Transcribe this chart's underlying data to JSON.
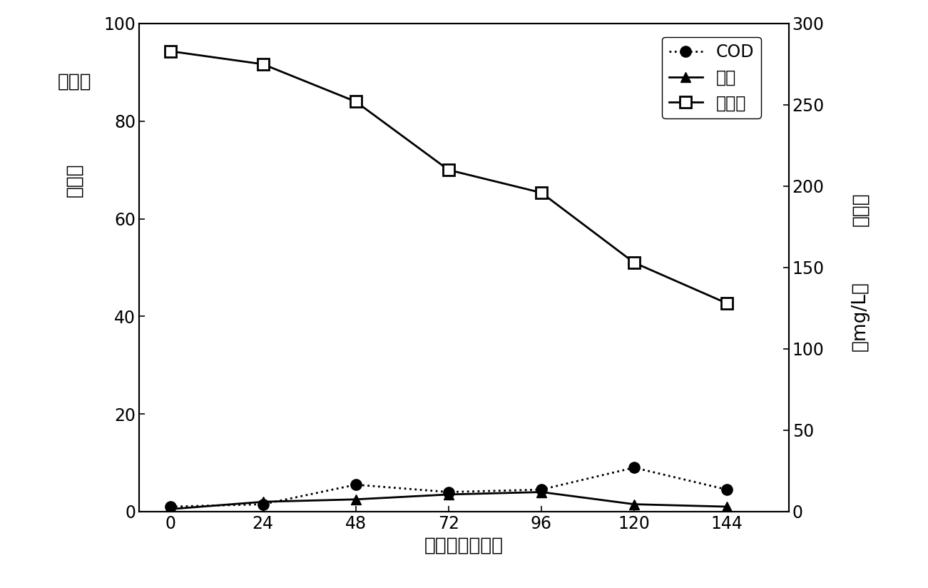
{
  "x": [
    0,
    24,
    48,
    72,
    96,
    120,
    144
  ],
  "cod_y": [
    1.0,
    1.5,
    5.5,
    4.0,
    4.5,
    9.0,
    4.5
  ],
  "total_sugar_y": [
    0.5,
    2.0,
    2.5,
    3.5,
    4.0,
    1.5,
    1.0
  ],
  "biomass_y": [
    283,
    275,
    252,
    210,
    196,
    153,
    128
  ],
  "left_ylim": [
    0,
    100
  ],
  "right_ylim": [
    0,
    300
  ],
  "left_yticks": [
    0,
    20,
    40,
    60,
    80,
    100
  ],
  "right_yticks": [
    0,
    50,
    100,
    150,
    200,
    250,
    300
  ],
  "xticks": [
    0,
    24,
    48,
    72,
    96,
    120,
    144
  ],
  "xlabel": "时间　（小时）",
  "ylabel_left_line1": "（％）",
  "ylabel_left_line2": "去除率",
  "ylabel_right_line1": "（mg/L）",
  "ylabel_right_line2": "生物量",
  "legend_cod": "COD",
  "legend_sugar": "总糖",
  "legend_biomass": "生物量",
  "line_color": "#000000",
  "background_color": "#ffffff",
  "figsize": [
    13.01,
    8.24
  ],
  "dpi": 100
}
